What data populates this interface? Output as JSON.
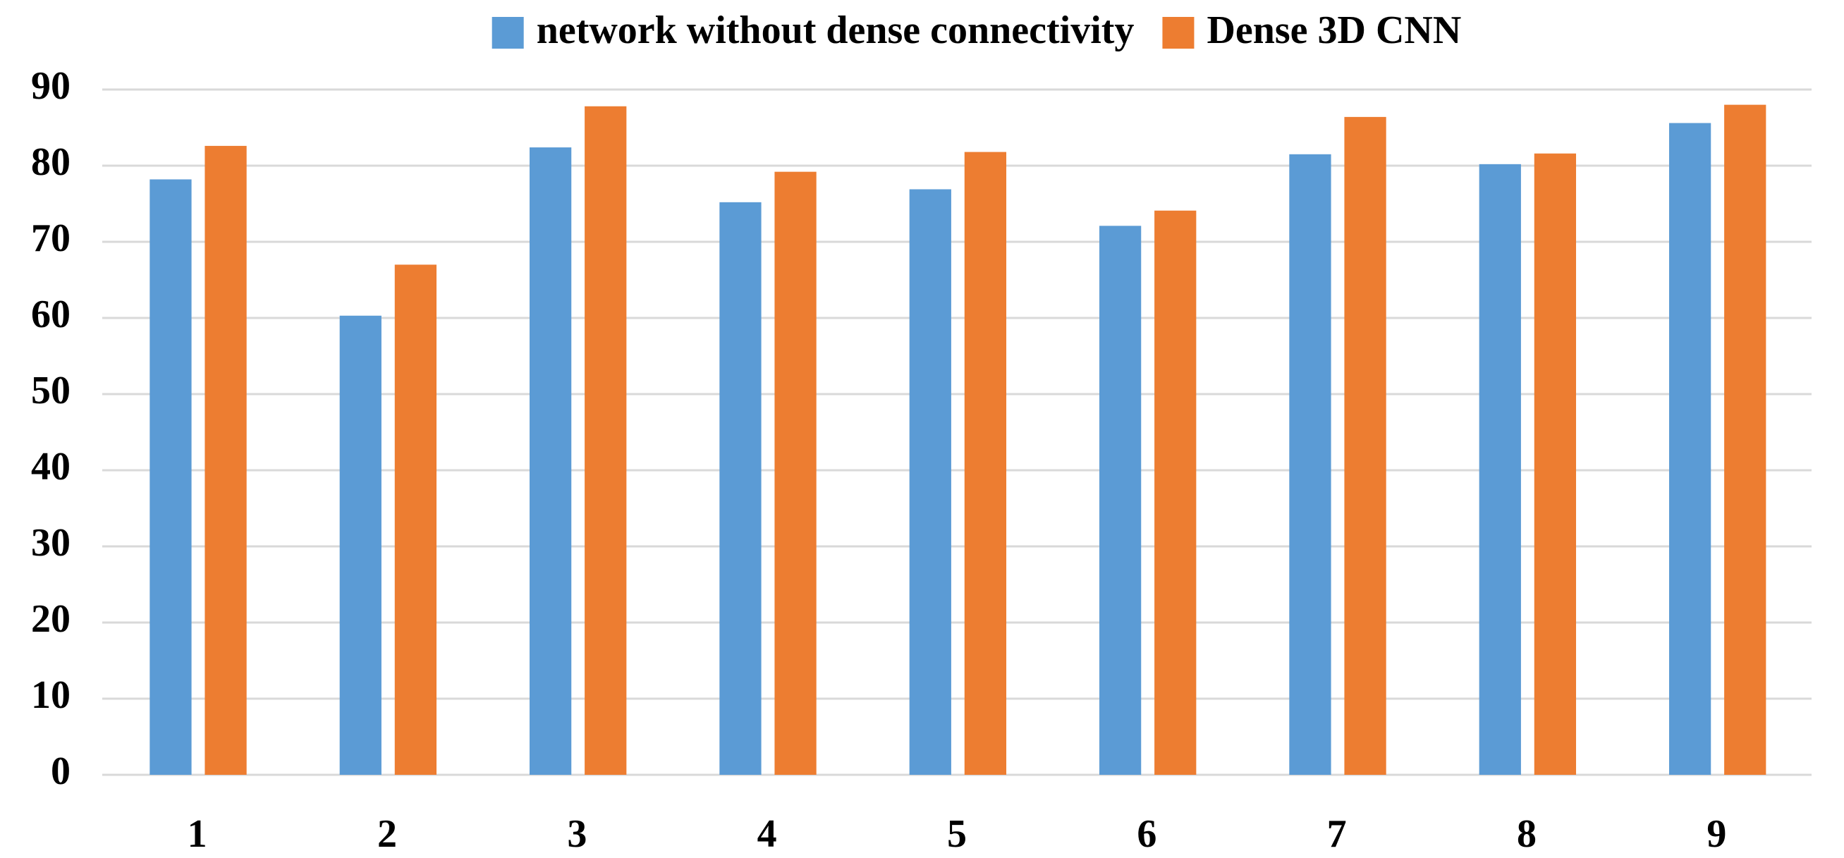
{
  "chart_data": {
    "type": "bar",
    "categories": [
      "1",
      "2",
      "3",
      "4",
      "5",
      "6",
      "7",
      "8",
      "9"
    ],
    "series": [
      {
        "name": "network without dense connectivity",
        "color": "#5b9bd5",
        "values": [
          78.2,
          60.3,
          82.4,
          75.2,
          76.9,
          72.1,
          81.5,
          80.2,
          85.6
        ]
      },
      {
        "name": "Dense 3D CNN",
        "color": "#ed7d31",
        "values": [
          82.6,
          67.0,
          87.8,
          79.2,
          81.8,
          74.1,
          86.4,
          81.6,
          88.0
        ]
      }
    ],
    "ylim": [
      0,
      90
    ],
    "yticks": [
      0,
      10,
      20,
      30,
      40,
      50,
      60,
      70,
      80,
      90
    ],
    "grid": true,
    "legend": "top"
  }
}
